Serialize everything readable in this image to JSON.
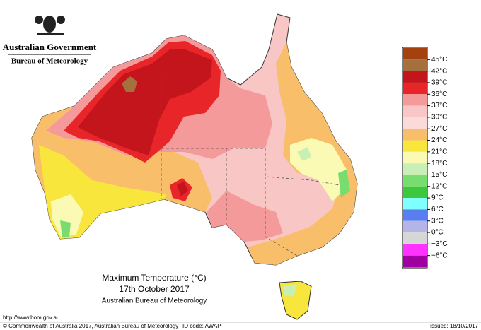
{
  "header": {
    "government": "Australian Government",
    "agency": "Bureau of Meteorology"
  },
  "map": {
    "title": "Maximum Temperature (°C)",
    "date": "17th October 2017",
    "source": "Australian Bureau of Meteorology"
  },
  "legend": {
    "labels": [
      "45°C",
      "42°C",
      "39°C",
      "36°C",
      "33°C",
      "30°C",
      "27°C",
      "24°C",
      "21°C",
      "18°C",
      "15°C",
      "12°C",
      "9°C",
      "6°C",
      "3°C",
      "0°C",
      "−3°C",
      "−6°C"
    ],
    "colors": [
      "#a3410f",
      "#a4703e",
      "#c4141c",
      "#e8262a",
      "#f59a9a",
      "#f9c6c6",
      "#fbdada",
      "#f8be6a",
      "#f8e63c",
      "#fafab4",
      "#c8f0b4",
      "#78dc6e",
      "#3cc83c",
      "#80ffff",
      "#5a7ef0",
      "#b4b4e6",
      "#d6d6d6",
      "#ff32ff",
      "#a000a0"
    ]
  },
  "footer": {
    "url": "http://www.bom.gov.au",
    "copyright": "© Commonwealth of Australia 2017, Australian Bureau of Meteorology",
    "id_code": "ID code: AWAP",
    "issued": "Issued: 18/10/2017"
  }
}
